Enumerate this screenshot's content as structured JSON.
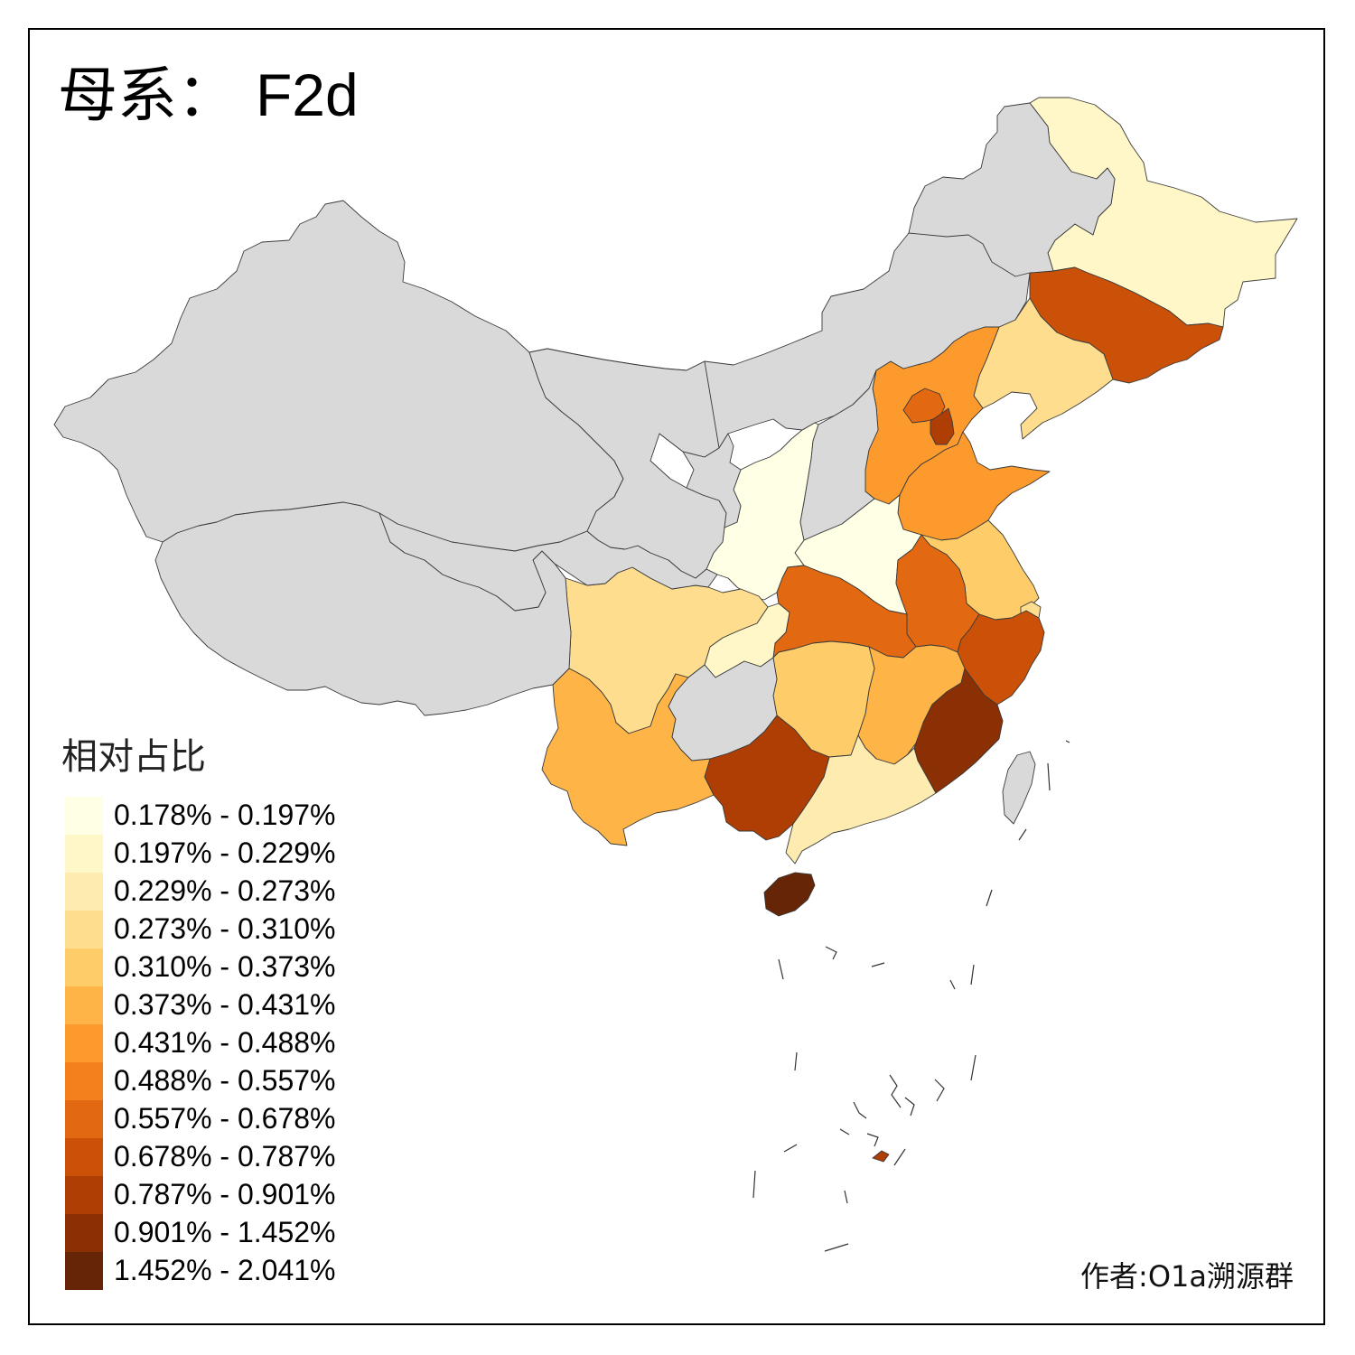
{
  "title": {
    "prefix": "母系：",
    "haplogroup": "F2d"
  },
  "legend": {
    "title": "相对占比",
    "classes": [
      {
        "label": "0.178% - 0.197%",
        "color": "#FFFFE5"
      },
      {
        "label": "0.197% - 0.229%",
        "color": "#FFF7C8"
      },
      {
        "label": "0.229% - 0.273%",
        "color": "#FEEBB0"
      },
      {
        "label": "0.273% - 0.310%",
        "color": "#FEDE8E"
      },
      {
        "label": "0.310% - 0.373%",
        "color": "#FECD6A"
      },
      {
        "label": "0.373% - 0.431%",
        "color": "#FEB446"
      },
      {
        "label": "0.431% - 0.488%",
        "color": "#FD9A2D"
      },
      {
        "label": "0.488% - 0.557%",
        "color": "#F3801C"
      },
      {
        "label": "0.557% - 0.678%",
        "color": "#E36812"
      },
      {
        "label": "0.678% - 0.787%",
        "color": "#CC5108"
      },
      {
        "label": "0.787% - 0.901%",
        "color": "#AE3E04"
      },
      {
        "label": "0.901% - 1.452%",
        "color": "#8B2F04"
      },
      {
        "label": "1.452% - 2.041%",
        "color": "#662506"
      }
    ],
    "no_data_color": "#D9D9D9"
  },
  "regions": [
    {
      "name": "Heilongjiang",
      "class": 1
    },
    {
      "name": "Jilin",
      "class": 9
    },
    {
      "name": "Liaoning",
      "class": 3
    },
    {
      "name": "Hebei",
      "class": 6
    },
    {
      "name": "Beijing",
      "class": 8
    },
    {
      "name": "Tianjin",
      "class": 10
    },
    {
      "name": "Shandong",
      "class": 6
    },
    {
      "name": "Henan",
      "class": 0
    },
    {
      "name": "Shaanxi",
      "class": 0
    },
    {
      "name": "Jiangsu",
      "class": 4
    },
    {
      "name": "Shanghai",
      "class": 3
    },
    {
      "name": "Anhui",
      "class": 8
    },
    {
      "name": "Hubei",
      "class": 8
    },
    {
      "name": "Chongqing",
      "class": 1
    },
    {
      "name": "Sichuan",
      "class": 3
    },
    {
      "name": "Zhejiang",
      "class": 9
    },
    {
      "name": "Jiangxi",
      "class": 5
    },
    {
      "name": "Hunan",
      "class": 4
    },
    {
      "name": "Fujian",
      "class": 11
    },
    {
      "name": "Guangdong",
      "class": 2
    },
    {
      "name": "Guangxi",
      "class": 10
    },
    {
      "name": "Yunnan",
      "class": 5
    },
    {
      "name": "Hainan",
      "class": 12
    },
    {
      "name": "Inner Mongolia",
      "class": null
    },
    {
      "name": "Xinjiang",
      "class": null
    },
    {
      "name": "Tibet",
      "class": null
    },
    {
      "name": "Qinghai",
      "class": null
    },
    {
      "name": "Gansu",
      "class": null
    },
    {
      "name": "Ningxia",
      "class": null
    },
    {
      "name": "Shanxi",
      "class": null
    },
    {
      "name": "Guizhou",
      "class": null
    },
    {
      "name": "Taiwan",
      "class": null
    }
  ],
  "author": "作者:O1a溯源群"
}
